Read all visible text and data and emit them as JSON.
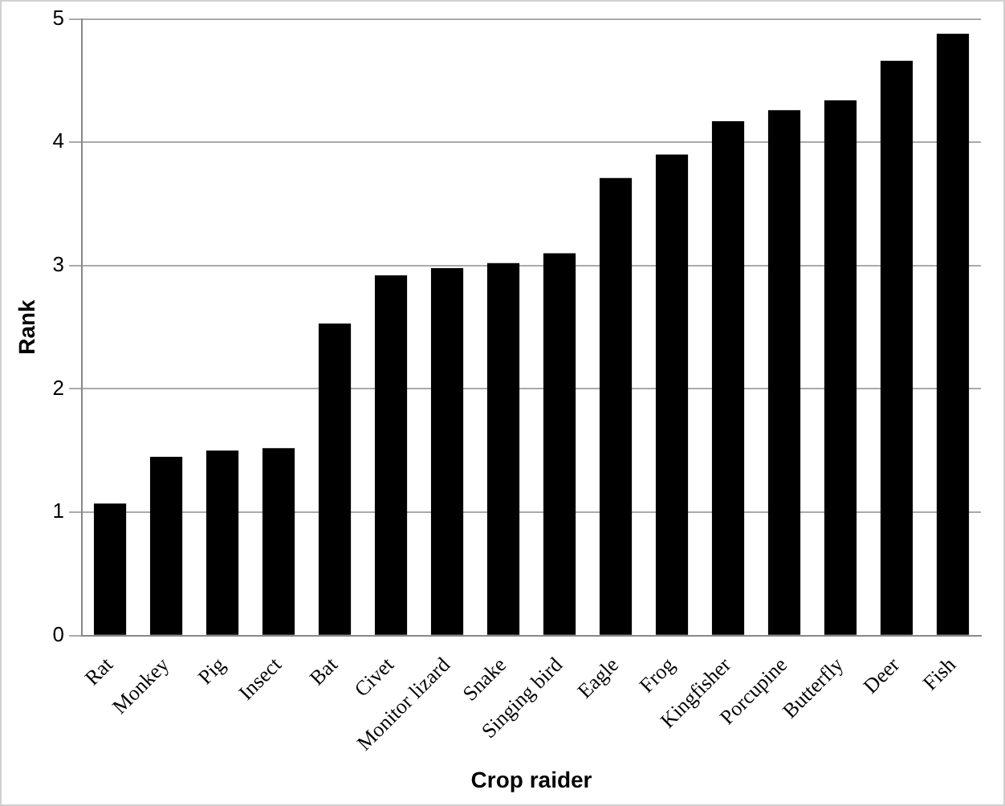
{
  "chart_data": {
    "type": "bar",
    "xlabel": "Crop raider",
    "ylabel": "Rank",
    "categories": [
      "Rat",
      "Monkey",
      "Pig",
      "Insect",
      "Bat",
      "Civet",
      "Monitor lizard",
      "Snake",
      "Singing bird",
      "Eagle",
      "Frog",
      "Kingfisher",
      "Porcupine",
      "Butterfly",
      "Deer",
      "Fish"
    ],
    "values": [
      1.07,
      1.45,
      1.5,
      1.52,
      2.53,
      2.92,
      2.98,
      3.02,
      3.1,
      3.71,
      3.9,
      4.17,
      4.26,
      4.34,
      4.66,
      4.88
    ],
    "color": "#000000",
    "ylim": [
      0,
      5
    ],
    "yticks": [
      0,
      1,
      2,
      3,
      4,
      5
    ],
    "grid": "y",
    "legend": false
  }
}
